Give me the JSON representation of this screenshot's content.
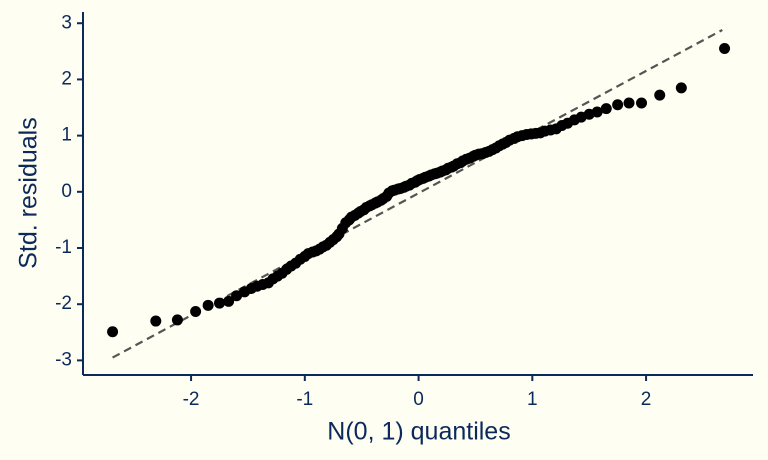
{
  "chart_data": {
    "type": "scatter",
    "xlabel": "N(0, 1) quantiles",
    "ylabel": "Std. residuals",
    "x": [
      -2.69,
      -2.31,
      -2.12,
      -1.96,
      -1.85,
      -1.75,
      -1.67,
      -1.6,
      -1.53,
      -1.47,
      -1.42,
      -1.37,
      -1.32,
      -1.28,
      -1.24,
      -1.2,
      -1.16,
      -1.12,
      -1.08,
      -1.04,
      -1.0,
      -0.97,
      -0.93,
      -0.9,
      -0.87,
      -0.84,
      -0.81,
      -0.78,
      -0.75,
      -0.72,
      -0.7,
      -0.67,
      -0.64,
      -0.61,
      -0.59,
      -0.56,
      -0.53,
      -0.51,
      -0.48,
      -0.46,
      -0.43,
      -0.41,
      -0.38,
      -0.36,
      -0.33,
      -0.31,
      -0.28,
      -0.26,
      -0.23,
      -0.21,
      -0.18,
      -0.16,
      -0.13,
      -0.11,
      -0.08,
      -0.06,
      -0.03,
      -0.01,
      0.01,
      0.04,
      0.06,
      0.09,
      0.11,
      0.14,
      0.16,
      0.19,
      0.21,
      0.24,
      0.26,
      0.29,
      0.31,
      0.34,
      0.37,
      0.39,
      0.42,
      0.45,
      0.48,
      0.5,
      0.53,
      0.56,
      0.59,
      0.62,
      0.65,
      0.68,
      0.71,
      0.74,
      0.77,
      0.8,
      0.84,
      0.87,
      0.91,
      0.95,
      0.99,
      1.03,
      1.07,
      1.11,
      1.16,
      1.21,
      1.26,
      1.31,
      1.37,
      1.43,
      1.5,
      1.57,
      1.65,
      1.75,
      1.85,
      1.96,
      2.12,
      2.31,
      2.69
    ],
    "y": [
      -2.49,
      -2.3,
      -2.28,
      -2.13,
      -2.02,
      -1.98,
      -1.95,
      -1.85,
      -1.78,
      -1.72,
      -1.68,
      -1.65,
      -1.62,
      -1.55,
      -1.5,
      -1.45,
      -1.38,
      -1.32,
      -1.27,
      -1.2,
      -1.15,
      -1.1,
      -1.07,
      -1.05,
      -1.02,
      -0.98,
      -0.95,
      -0.9,
      -0.85,
      -0.8,
      -0.75,
      -0.65,
      -0.55,
      -0.5,
      -0.45,
      -0.42,
      -0.38,
      -0.35,
      -0.32,
      -0.28,
      -0.25,
      -0.23,
      -0.2,
      -0.18,
      -0.15,
      -0.12,
      -0.08,
      -0.02,
      0.02,
      0.03,
      0.05,
      0.06,
      0.08,
      0.1,
      0.12,
      0.15,
      0.17,
      0.2,
      0.22,
      0.24,
      0.26,
      0.28,
      0.3,
      0.32,
      0.33,
      0.35,
      0.37,
      0.39,
      0.42,
      0.44,
      0.46,
      0.5,
      0.52,
      0.55,
      0.58,
      0.6,
      0.63,
      0.65,
      0.67,
      0.68,
      0.7,
      0.72,
      0.75,
      0.78,
      0.82,
      0.85,
      0.88,
      0.92,
      0.95,
      0.98,
      1.0,
      1.02,
      1.03,
      1.04,
      1.05,
      1.08,
      1.1,
      1.12,
      1.18,
      1.22,
      1.28,
      1.33,
      1.38,
      1.42,
      1.48,
      1.55,
      1.58,
      1.58,
      1.72,
      1.85,
      2.55
    ],
    "color": "#000000",
    "reference_line": {
      "x": [
        -2.69,
        2.67
      ],
      "y": [
        -2.95,
        2.88
      ],
      "color": "#555555"
    },
    "xlim": [
      -2.95,
      2.94
    ],
    "ylim": [
      -3.26,
      3.2
    ],
    "xticks": [
      -2,
      -1,
      0,
      1,
      2
    ],
    "yticks": [
      -3,
      -2,
      -1,
      0,
      1,
      2,
      3
    ],
    "grid": false
  }
}
